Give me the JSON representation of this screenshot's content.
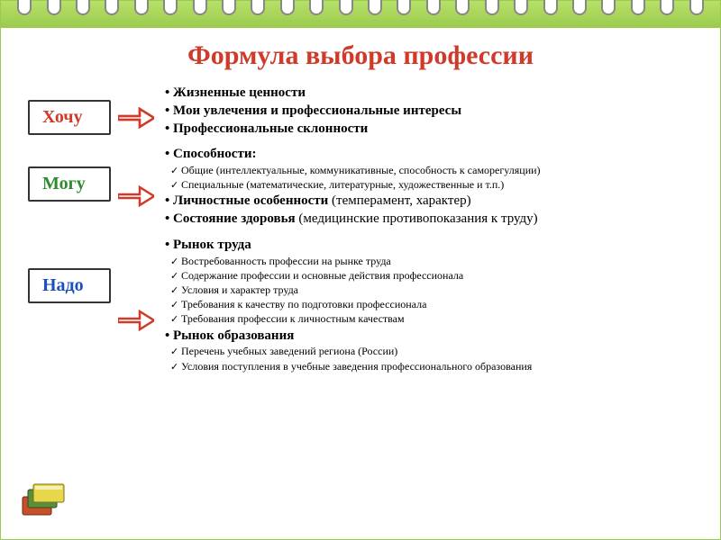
{
  "title": "Формула выбора профессии",
  "title_color": "#d03a2a",
  "sections": [
    {
      "label": "Хочу",
      "label_color": "#d03a2a",
      "arrow_color": "#d03a2a",
      "items": [
        {
          "type": "bullet",
          "text": "Жизненные ценности",
          "bold": true
        },
        {
          "type": "bullet",
          "text": "Мои увлечения и профессиональные интересы",
          "bold": true
        },
        {
          "type": "bullet",
          "text": "Профессиональные склонности",
          "bold": true
        }
      ]
    },
    {
      "label": "Могу",
      "label_color": "#2e8b2e",
      "arrow_color": "#d03a2a",
      "items": [
        {
          "type": "bullet",
          "text": "Способности:",
          "bold": true
        },
        {
          "type": "check",
          "text": "Общие (интеллектуальные, коммуникативные, способность к  саморегуляции)",
          "sub": true
        },
        {
          "type": "check",
          "text": "Специальные (математические, литературные, художественные и т.п.)",
          "sub": true
        },
        {
          "type": "bullet",
          "text": "Личностные особенности",
          "paren": " (темперамент, характер)",
          "bold": true
        },
        {
          "type": "bullet",
          "text": "Состояние здоровья",
          "paren": " (медицинские противопоказания к   труду)",
          "bold": true
        }
      ]
    },
    {
      "label": "Надо",
      "label_color": "#1a4fc4",
      "arrow_color": "#d03a2a",
      "items": [
        {
          "type": "bullet",
          "text": "Рынок труда",
          "bold": true
        },
        {
          "type": "check",
          "text": "Востребованность профессии на рынке труда",
          "sub": true
        },
        {
          "type": "check",
          "text": "Содержание профессии и основные действия профессионала",
          "sub": true
        },
        {
          "type": "check",
          "text": "Условия и характер труда",
          "sub": true
        },
        {
          "type": "check",
          "text": "Требования к качеству по подготовки профессионала",
          "sub": true
        },
        {
          "type": "check",
          "text": "Требования профессии к личностным качествам",
          "sub": true
        },
        {
          "type": "bullet",
          "text": "Рынок образования",
          "bold": true
        },
        {
          "type": "check",
          "text": "Перечень учебных заведений региона (России)",
          "sub": true
        },
        {
          "type": "check",
          "text": "Условия поступления в учебные заведения профессионального образования",
          "sub": true
        }
      ]
    }
  ]
}
